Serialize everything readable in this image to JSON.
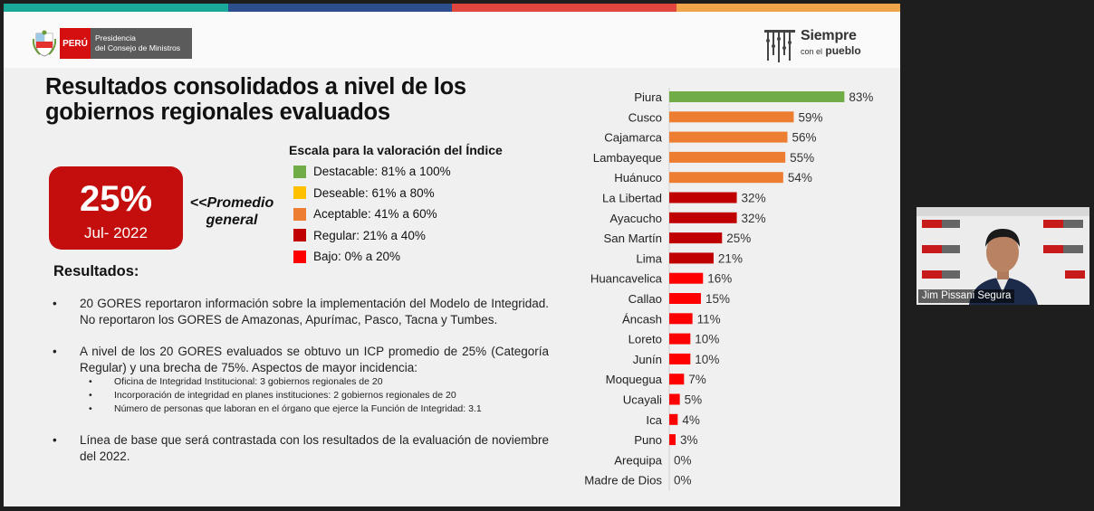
{
  "header": {
    "logo_peru": "PERÚ",
    "logo_presidencia": "Presidencia",
    "logo_consejo": "del Consejo de Ministros",
    "siempre_line1": "Siempre",
    "siempre_small": "con el",
    "siempre_big": "pueblo"
  },
  "title": {
    "line1": "Resultados consolidados a nivel de los",
    "line2": "gobiernos regionales evaluados"
  },
  "kpi": {
    "value": "25%",
    "date": "Jul- 2022",
    "label_line1": "<<Promedio",
    "label_line2": "general"
  },
  "legend": {
    "title": "Escala para la valoración del Índice",
    "items": [
      {
        "label": "Destacable: 81% a 100%",
        "color": "#70ad47"
      },
      {
        "label": "Deseable: 61% a 80%",
        "color": "#ffc000"
      },
      {
        "label": "Aceptable: 41% a 60%",
        "color": "#ed7d31"
      },
      {
        "label": "Regular: 21% a 40%",
        "color": "#c00000"
      },
      {
        "label": "Bajo: 0% a 20%",
        "color": "#ff0000"
      }
    ]
  },
  "results": {
    "title": "Resultados:",
    "bullet_symbol": "•",
    "b1": "20 GORES reportaron información sobre la implementación del Modelo de Integridad. No reportaron los GORES de Amazonas, Apurímac, Pasco, Tacna y Tumbes.",
    "b2": "A nivel de los 20 GORES evaluados se obtuvo un ICP promedio de 25% (Categoría Regular) y una brecha de 75%. Aspectos de mayor incidencia:",
    "subs": [
      "Oficina de Integridad Institucional: 3 gobiernos regionales de 20",
      "Incorporación de integridad en planes instituciones: 2 gobiernos regionales de 20",
      "Número de personas que laboran en el órgano que ejerce la Función de Integridad: 3.1"
    ],
    "b3": "Línea de base que será contrastada con los resultados de la evaluación de noviembre del 2022."
  },
  "chart_data": {
    "type": "bar",
    "orientation": "horizontal",
    "categories": [
      "Piura",
      "Cusco",
      "Cajamarca",
      "Lambayeque",
      "Huánuco",
      "La Libertad",
      "Ayacucho",
      "San Martín",
      "Lima",
      "Huancavelica",
      "Callao",
      "Áncash",
      "Loreto",
      "Junín",
      "Moquegua",
      "Ucayali",
      "Ica",
      "Puno",
      "Arequipa",
      "Madre de Dios"
    ],
    "values": [
      83,
      59,
      56,
      55,
      54,
      32,
      32,
      25,
      21,
      16,
      15,
      11,
      10,
      10,
      7,
      5,
      4,
      3,
      0,
      0
    ],
    "labels": [
      "83%",
      "59%",
      "56%",
      "55%",
      "54%",
      "32%",
      "32%",
      "25%",
      "21%",
      "16%",
      "15%",
      "11%",
      "10%",
      "10%",
      "7%",
      "5%",
      "4%",
      "3%",
      "0%",
      "0%"
    ],
    "colors": [
      "#70ad47",
      "#ed7d31",
      "#ed7d31",
      "#ed7d31",
      "#ed7d31",
      "#c00000",
      "#c00000",
      "#c00000",
      "#c00000",
      "#ff0000",
      "#ff0000",
      "#ff0000",
      "#ff0000",
      "#ff0000",
      "#ff0000",
      "#ff0000",
      "#ff0000",
      "#ff0000",
      "#ff0000",
      "#ff0000"
    ],
    "xlim": [
      0,
      100
    ],
    "grid": false,
    "title": "",
    "xlabel": "",
    "ylabel": ""
  },
  "video": {
    "participant_name": "Jim Pissani Segura"
  },
  "colors": {
    "topbar": [
      "#1aa89a",
      "#2d4e8c",
      "#e0453e",
      "#f0a54a"
    ],
    "kpi_red": "#c40d0d"
  }
}
